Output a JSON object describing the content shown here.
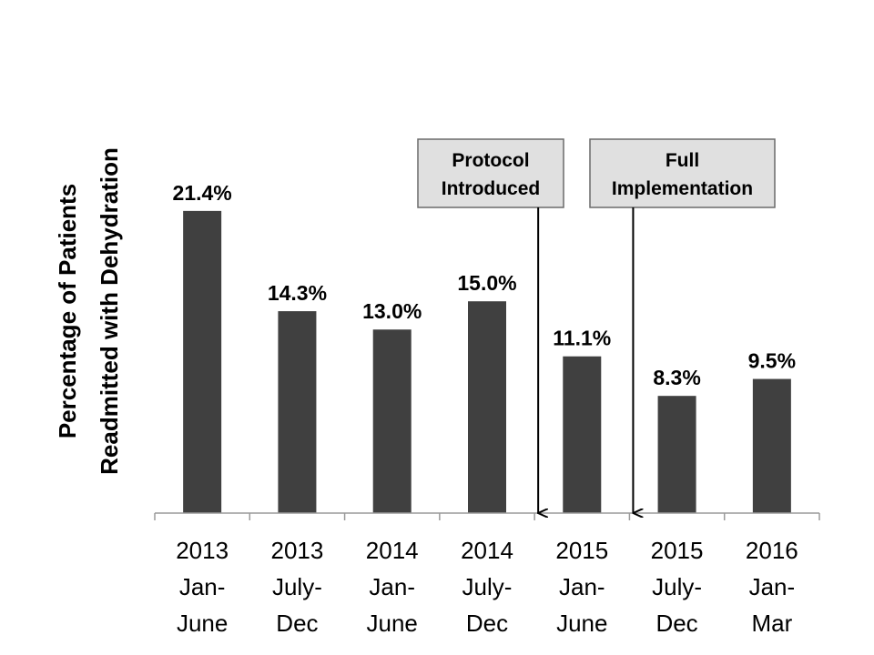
{
  "colors": {
    "bar": "#404040",
    "axis": "#9a9a9a",
    "annotation_box": "#e0e0e0",
    "annotation_border": "#6a6a6a",
    "arrow": "#000000"
  },
  "chart_data": {
    "type": "bar",
    "title": "",
    "xlabel": "",
    "ylabel_lines": [
      "Percentage of Patients",
      "Readmitted with Dehydration"
    ],
    "ylim": [
      0,
      25
    ],
    "grid": false,
    "legend": "none",
    "categories": [
      [
        "2013",
        "Jan-",
        "June"
      ],
      [
        "2013",
        "July-",
        "Dec"
      ],
      [
        "2014",
        "Jan-",
        "June"
      ],
      [
        "2014",
        "July-",
        "Dec"
      ],
      [
        "2015",
        "Jan-",
        "June"
      ],
      [
        "2015",
        "July-",
        "Dec"
      ],
      [
        "2016",
        "Jan-",
        "Mar"
      ]
    ],
    "values": [
      21.4,
      14.3,
      13.0,
      15.0,
      11.1,
      8.3,
      9.5
    ],
    "data_labels": [
      "21.4%",
      "14.3%",
      "13.0%",
      "15.0%",
      "11.1%",
      "8.3%",
      "9.5%"
    ],
    "annotations": [
      {
        "lines": [
          "Protocol",
          "Introduced"
        ],
        "after_category_index": 3
      },
      {
        "lines": [
          "Full",
          "Implementation"
        ],
        "after_category_index": 4
      }
    ]
  }
}
